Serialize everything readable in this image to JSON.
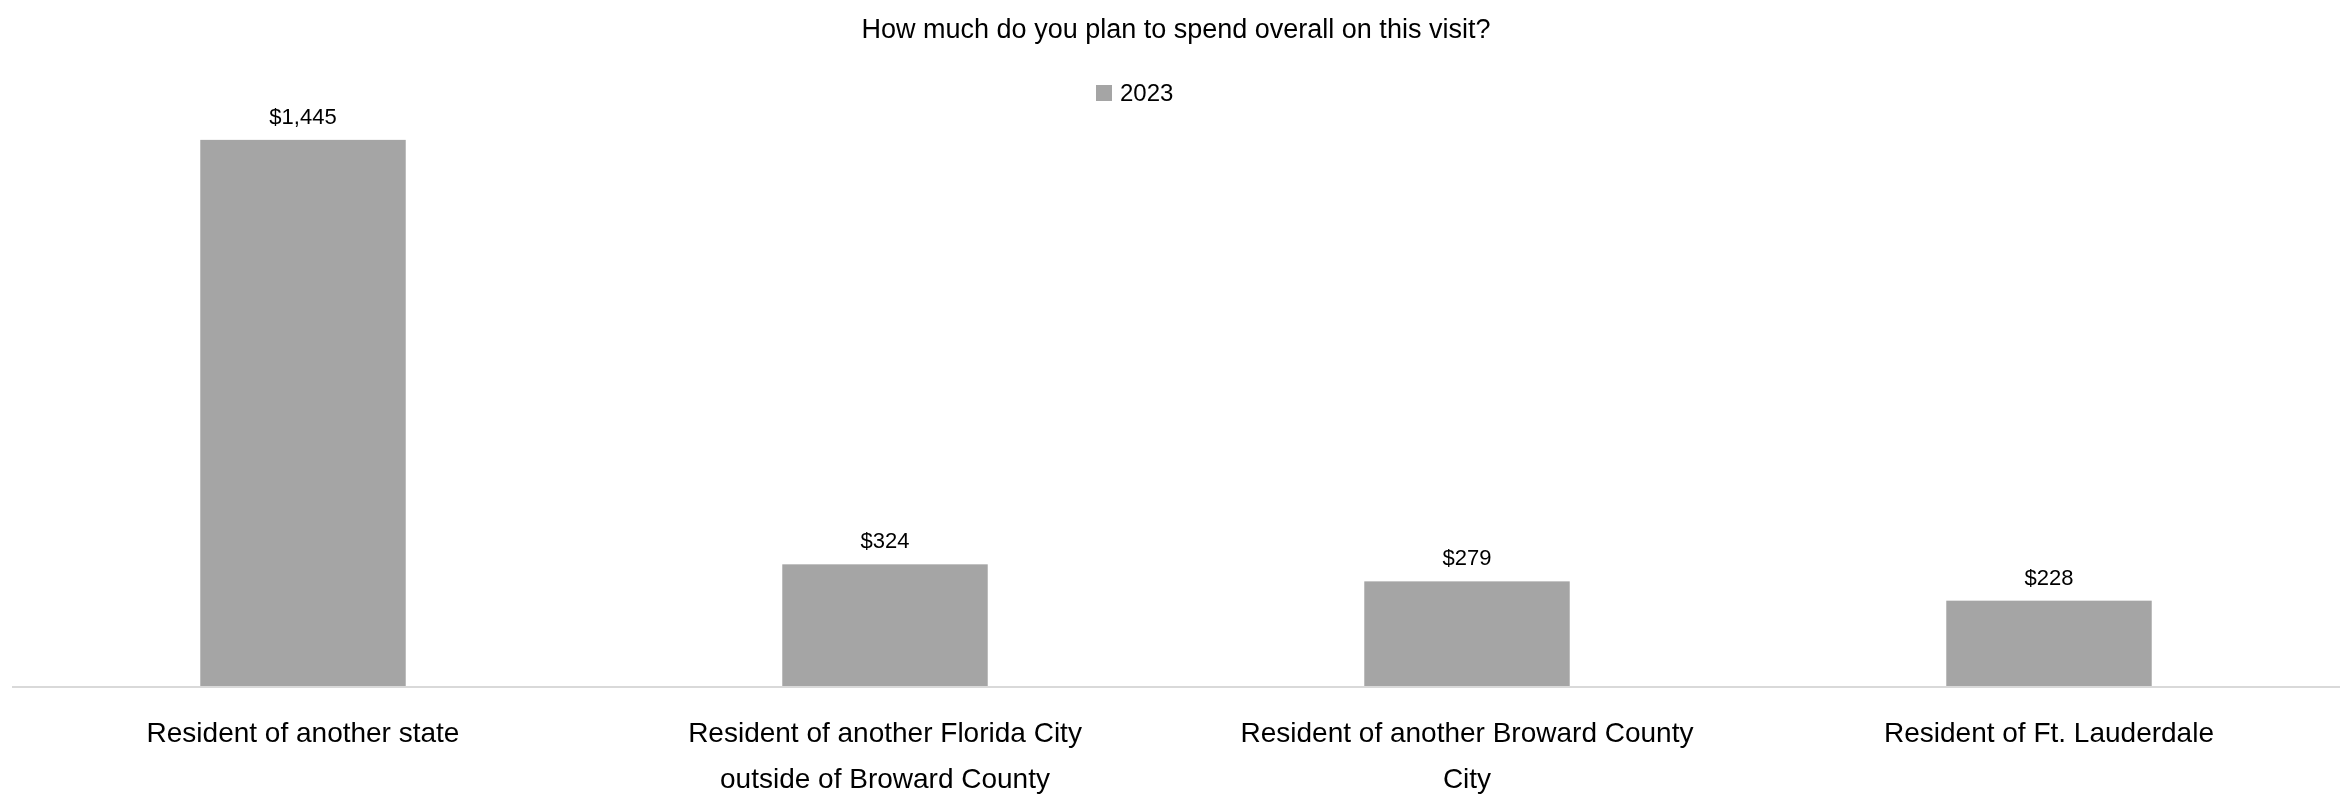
{
  "chart_data": {
    "type": "bar",
    "title": "How much do you plan to spend overall on this visit?",
    "categories": [
      "Resident of another state",
      "Resident of another Florida City outside of Broward County",
      "Resident of another Broward County City",
      "Resident of Ft. Lauderdale"
    ],
    "series": [
      {
        "name": "2023",
        "color": "#a5a5a5",
        "values": [
          1445,
          324,
          279,
          228
        ],
        "value_labels": [
          "$1,445",
          "$324",
          "$279",
          "$228"
        ]
      }
    ],
    "legend": "top"
  }
}
